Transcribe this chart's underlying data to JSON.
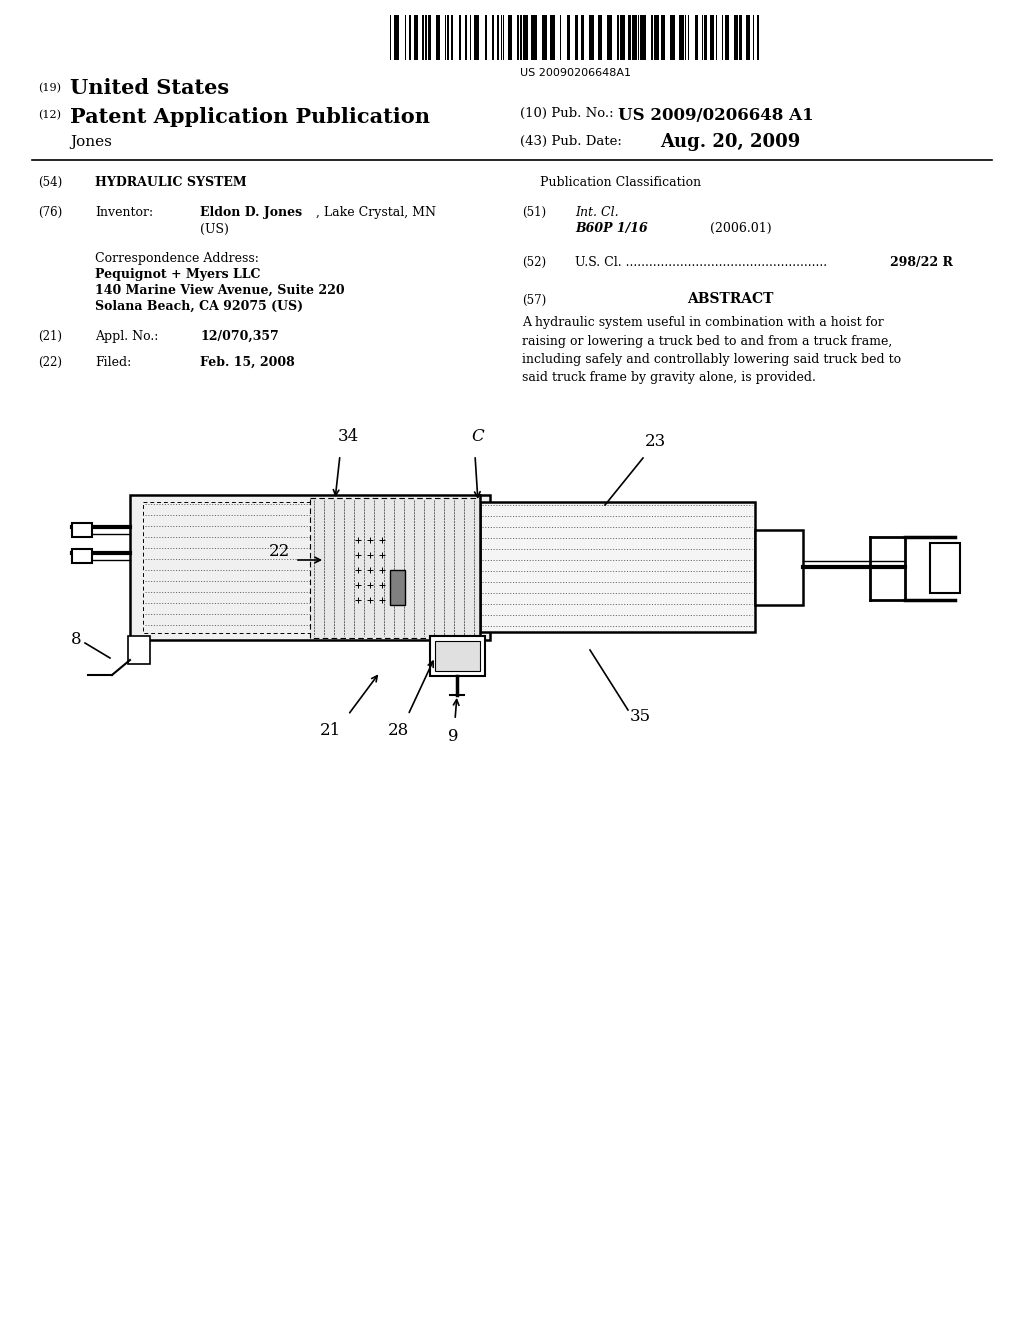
{
  "bg_color": "#ffffff",
  "barcode_text": "US 20090206648A1",
  "patent_number": "US 2009/0206648 A1",
  "pub_date": "Aug. 20, 2009",
  "title_19": "United States",
  "title_12": "Patent Application Publication",
  "inventor_name": "Jones",
  "pub_no_label": "(10) Pub. No.:",
  "pub_date_label": "(43) Pub. Date:",
  "section_54_label": "(54)",
  "section_54_value": "HYDRAULIC SYSTEM",
  "section_76_label": "(76)",
  "section_76_sub": "Inventor:",
  "section_76_name": "Eldon D. Jones",
  "section_76_loc": ", Lake Crystal, MN",
  "section_76_country": "(US)",
  "corr_title": "Correspondence Address:",
  "corr_line1": "Pequignot + Myers LLC",
  "corr_line2": "140 Marine View Avenue, Suite 220",
  "corr_line3": "Solana Beach, CA 92075 (US)",
  "section_21_label": "(21)",
  "section_21_sub": "Appl. No.:",
  "section_21_value": "12/070,357",
  "section_22_label": "(22)",
  "section_22_sub": "Filed:",
  "section_22_value": "Feb. 15, 2008",
  "pub_class_title": "Publication Classification",
  "section_51_label": "(51)",
  "section_51_sub": "Int. Cl.",
  "section_51_class": "B60P 1/16",
  "section_51_date": "(2006.01)",
  "section_52_label": "(52)",
  "section_52_sub": "U.S. Cl. ....................................................",
  "section_52_value": "298/22 R",
  "section_57_label": "(57)",
  "section_57_title": "ABSTRACT",
  "abstract_text": "A hydraulic system useful in combination with a hoist for raising or lowering a truck bed to and from a truck frame, including safely and controllably lowering said truck bed to said truck frame by gravity alone, is provided."
}
